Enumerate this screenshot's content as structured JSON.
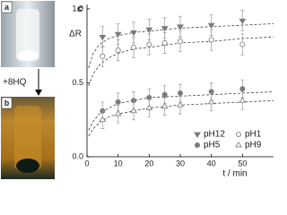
{
  "header": {
    "panel_a": "a",
    "panel_b": "b",
    "reagent": "+8HQ"
  },
  "chart_data": {
    "type": "scatter",
    "panel_label": "c",
    "x_label": "t / min",
    "y_label": "ΔR",
    "xlim": [
      0,
      60
    ],
    "ylim": [
      0,
      1.03
    ],
    "xticks": [
      0,
      10,
      20,
      30,
      40,
      50
    ],
    "yticks": [
      {
        "value": 0,
        "label": "0.0"
      },
      0.5,
      {
        "value": 1,
        "label": "1.0"
      }
    ],
    "x": [
      5,
      10,
      15,
      20,
      25,
      30,
      40,
      50
    ],
    "fit_x": [
      0.5,
      2,
      4,
      7,
      10,
      15,
      20,
      30,
      40,
      50,
      60
    ],
    "series": [
      {
        "name": "pH12",
        "color": "#7a7a7a",
        "marker": "triangle-down",
        "filled": true,
        "values": [
          0.81,
          0.83,
          0.84,
          0.86,
          0.87,
          0.88,
          0.89,
          0.92
        ],
        "errors": [
          0.07,
          0.07,
          0.07,
          0.07,
          0.07,
          0.07,
          0.07,
          0.07
        ],
        "fit": [
          0.6,
          0.7,
          0.76,
          0.8,
          0.82,
          0.84,
          0.85,
          0.87,
          0.88,
          0.89,
          0.9
        ]
      },
      {
        "name": "pH1",
        "color": "#7a7a7a",
        "marker": "circle",
        "filled": false,
        "values": [
          0.68,
          0.72,
          0.74,
          0.76,
          0.77,
          0.78,
          0.79,
          0.76
        ],
        "errors": [
          0.07,
          0.07,
          0.07,
          0.07,
          0.07,
          0.07,
          0.07,
          0.07
        ],
        "fit": [
          0.48,
          0.56,
          0.62,
          0.67,
          0.7,
          0.73,
          0.74,
          0.77,
          0.78,
          0.8,
          0.81
        ]
      },
      {
        "name": "pH5",
        "color": "#7a7a7a",
        "marker": "circle",
        "filled": true,
        "values": [
          0.31,
          0.37,
          0.38,
          0.4,
          0.42,
          0.43,
          0.44,
          0.46
        ],
        "errors": [
          0.06,
          0.06,
          0.06,
          0.06,
          0.06,
          0.06,
          0.06,
          0.06
        ],
        "fit": [
          0.18,
          0.24,
          0.29,
          0.33,
          0.36,
          0.38,
          0.4,
          0.41,
          0.42,
          0.43,
          0.44
        ]
      },
      {
        "name": "pH9",
        "color": "#7a7a7a",
        "marker": "triangle-up",
        "filled": false,
        "values": [
          0.25,
          0.29,
          0.31,
          0.33,
          0.34,
          0.35,
          0.37,
          0.38
        ],
        "errors": [
          0.06,
          0.06,
          0.06,
          0.06,
          0.06,
          0.06,
          0.06,
          0.06
        ],
        "fit": [
          0.14,
          0.19,
          0.23,
          0.27,
          0.29,
          0.31,
          0.33,
          0.35,
          0.36,
          0.37,
          0.38
        ]
      }
    ]
  }
}
